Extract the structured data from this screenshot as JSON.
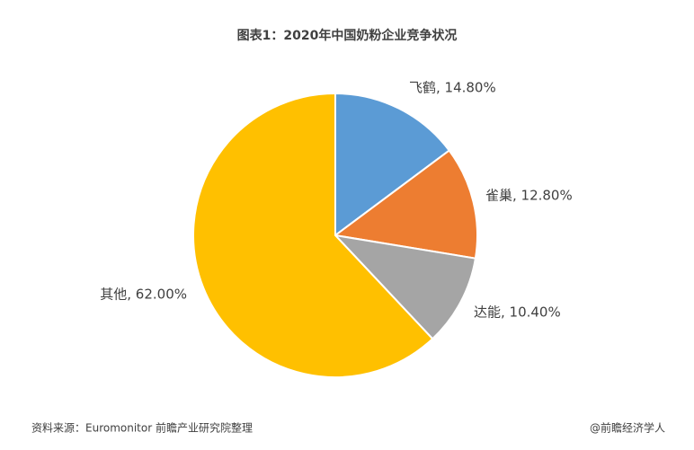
{
  "chart_data": {
    "type": "pie",
    "title": "图表1：2020年中国奶粉企业竞争状况",
    "values": [
      14.8,
      12.8,
      10.4,
      62.0
    ],
    "value_labels": [
      "飞鹤, 14.80%",
      "雀巢, 12.80%",
      "达能, 10.40%",
      "其他, 62.00%"
    ],
    "colors": [
      "#5b9bd5",
      "#ed7d31",
      "#a5a5a5",
      "#ffc000"
    ],
    "source": "资料来源：Euromonitor 前瞻产业研究院整理",
    "credit": "@前瞻经济学人"
  }
}
